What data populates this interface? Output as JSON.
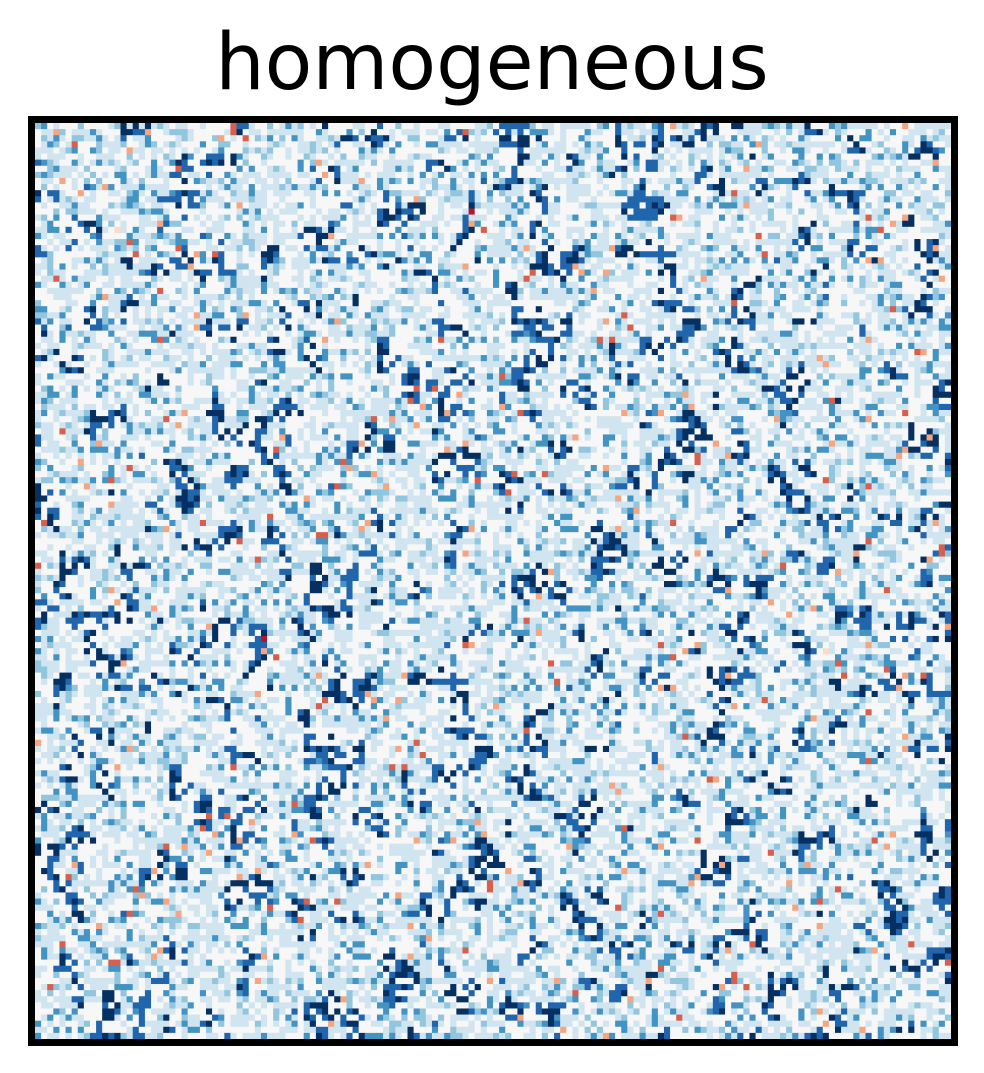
{
  "chart_data": {
    "type": "heatmap",
    "title": "homogeneous",
    "grid": false,
    "legend": "none",
    "axes_visible": false,
    "colormap": "RdBu_r",
    "colormap_stops": [
      "#053061",
      "#2166ac",
      "#4393c3",
      "#92c5de",
      "#d1e5f0",
      "#f7f7f7",
      "#fddbc7",
      "#f4a582",
      "#d6604d",
      "#b2182b"
    ],
    "grid_size": [
      150,
      150
    ],
    "value_range": [
      -1,
      1
    ],
    "frame_color": "#000000"
  }
}
